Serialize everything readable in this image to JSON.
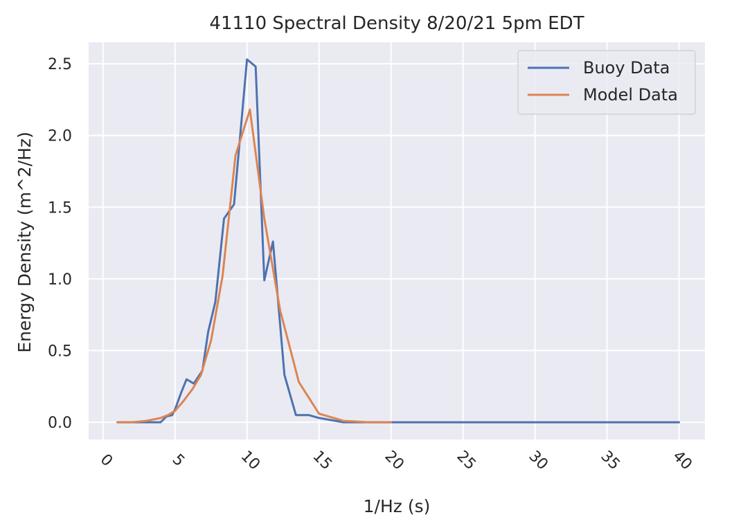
{
  "chart_data": {
    "type": "line",
    "title": "41110 Spectral Density 8/20/21 5pm EDT",
    "xlabel": "1/Hz (s)",
    "ylabel": "Energy Density (m^2/Hz)",
    "xlim": [
      -1,
      41.8
    ],
    "ylim": [
      -0.12,
      2.65
    ],
    "xticks": [
      0,
      5,
      10,
      15,
      20,
      25,
      30,
      35,
      40
    ],
    "yticks": [
      0.0,
      0.5,
      1.0,
      1.5,
      2.0,
      2.5
    ],
    "xtick_labels": [
      "0",
      "5",
      "10",
      "15",
      "20",
      "25",
      "30",
      "35",
      "40"
    ],
    "ytick_labels": [
      "0.0",
      "0.5",
      "1.0",
      "1.5",
      "2.0",
      "2.5"
    ],
    "grid": true,
    "legend_position": "top-right",
    "background_color": "#eaeaf2",
    "series": [
      {
        "name": "Buoy Data",
        "color": "#4c72b0",
        "points": [
          [
            1.0,
            0.0
          ],
          [
            2.0,
            0.0
          ],
          [
            3.0,
            0.0
          ],
          [
            3.5,
            0.0
          ],
          [
            4.0,
            0.0
          ],
          [
            4.4,
            0.04
          ],
          [
            4.8,
            0.05
          ],
          [
            5.0,
            0.09
          ],
          [
            5.4,
            0.2
          ],
          [
            5.8,
            0.3
          ],
          [
            6.3,
            0.27
          ],
          [
            6.9,
            0.36
          ],
          [
            7.3,
            0.63
          ],
          [
            7.8,
            0.84
          ],
          [
            8.4,
            1.42
          ],
          [
            9.1,
            1.52
          ],
          [
            10.0,
            2.53
          ],
          [
            10.6,
            2.48
          ],
          [
            11.2,
            0.99
          ],
          [
            11.8,
            1.26
          ],
          [
            12.6,
            0.33
          ],
          [
            13.4,
            0.05
          ],
          [
            14.3,
            0.05
          ],
          [
            15.0,
            0.03
          ],
          [
            16.7,
            0.0
          ],
          [
            18.0,
            0.0
          ],
          [
            20.0,
            0.0
          ],
          [
            25.0,
            0.0
          ],
          [
            30.0,
            0.0
          ],
          [
            35.0,
            0.0
          ],
          [
            40.0,
            0.0
          ]
        ]
      },
      {
        "name": "Model Data",
        "color": "#dd8452",
        "points": [
          [
            1.0,
            0.0
          ],
          [
            2.0,
            0.0
          ],
          [
            3.0,
            0.01
          ],
          [
            3.5,
            0.02
          ],
          [
            4.0,
            0.03
          ],
          [
            4.5,
            0.05
          ],
          [
            5.0,
            0.08
          ],
          [
            5.6,
            0.15
          ],
          [
            6.2,
            0.23
          ],
          [
            6.8,
            0.33
          ],
          [
            7.5,
            0.57
          ],
          [
            8.3,
            1.02
          ],
          [
            9.2,
            1.86
          ],
          [
            10.2,
            2.18
          ],
          [
            11.2,
            1.42
          ],
          [
            12.3,
            0.78
          ],
          [
            13.6,
            0.28
          ],
          [
            15.0,
            0.06
          ],
          [
            16.7,
            0.01
          ],
          [
            18.5,
            0.0
          ],
          [
            20.0,
            0.0
          ]
        ]
      }
    ]
  }
}
